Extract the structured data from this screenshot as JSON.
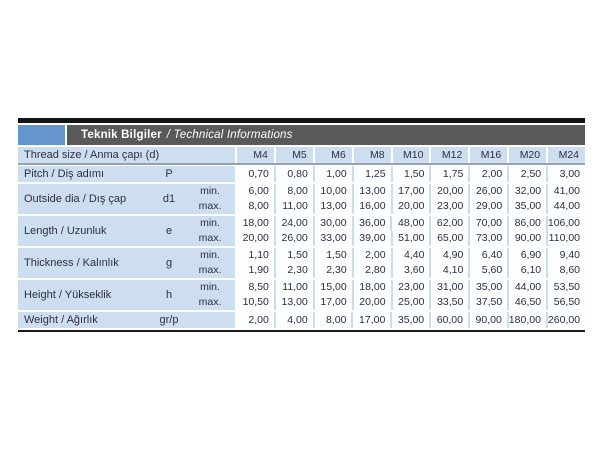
{
  "title_bar": {
    "title_bold": "Teknik Bilgiler",
    "title_italic": "/ Technical Informations"
  },
  "colors": {
    "accent_blue": "#6495cd",
    "title_bar_gray": "#58595b",
    "cell_light_blue": "#cddef0",
    "data_cell_white": "#fbfdfe",
    "divider_gray": "#9ba1a8",
    "rule_black": "#141414",
    "text_dark": "#2b3040"
  },
  "table": {
    "size_header": {
      "label": "Thread size / Anma çapı (d)",
      "sizes": [
        "M4",
        "M5",
        "M6",
        "M8",
        "M10",
        "M12",
        "M16",
        "M20",
        "M24"
      ]
    },
    "groups": [
      {
        "label": "Pitch / Diş adımı",
        "symbol": "P",
        "rows": [
          {
            "sub": "",
            "values": [
              "0,70",
              "0,80",
              "1,00",
              "1,25",
              "1,50",
              "1,75",
              "2,00",
              "2,50",
              "3,00"
            ]
          }
        ]
      },
      {
        "label": "Outside dia / Dış çap",
        "symbol": "d1",
        "rows": [
          {
            "sub": "min.",
            "values": [
              "6,00",
              "8,00",
              "10,00",
              "13,00",
              "17,00",
              "20,00",
              "26,00",
              "32,00",
              "41,00"
            ]
          },
          {
            "sub": "max.",
            "values": [
              "8,00",
              "11,00",
              "13,00",
              "16,00",
              "20,00",
              "23,00",
              "29,00",
              "35,00",
              "44,00"
            ]
          }
        ]
      },
      {
        "label": "Length / Uzunluk",
        "symbol": "e",
        "rows": [
          {
            "sub": "min.",
            "values": [
              "18,00",
              "24,00",
              "30,00",
              "36,00",
              "48,00",
              "62,00",
              "70,00",
              "86,00",
              "106,00"
            ]
          },
          {
            "sub": "max.",
            "values": [
              "20,00",
              "26,00",
              "33,00",
              "39,00",
              "51,00",
              "65,00",
              "73,00",
              "90,00",
              "110,00"
            ]
          }
        ]
      },
      {
        "label": "Thickness / Kalınlık",
        "symbol": "g",
        "rows": [
          {
            "sub": "min.",
            "values": [
              "1,10",
              "1,50",
              "1,50",
              "2,00",
              "4,40",
              "4,90",
              "6,40",
              "6,90",
              "9,40"
            ]
          },
          {
            "sub": "max.",
            "values": [
              "1,90",
              "2,30",
              "2,30",
              "2,80",
              "3,60",
              "4,10",
              "5,60",
              "6,10",
              "8,60"
            ]
          }
        ]
      },
      {
        "label": "Height / Yükseklik",
        "symbol": "h",
        "rows": [
          {
            "sub": "min.",
            "values": [
              "8,50",
              "11,00",
              "15,00",
              "18,00",
              "23,00",
              "31,00",
              "35,00",
              "44,00",
              "53,50"
            ]
          },
          {
            "sub": "max.",
            "values": [
              "10,50",
              "13,00",
              "17,00",
              "20,00",
              "25,00",
              "33,50",
              "37,50",
              "46,50",
              "56,50"
            ]
          }
        ]
      },
      {
        "label": "Weight / Ağırlık",
        "symbol": "gr/p",
        "rows": [
          {
            "sub": "",
            "values": [
              "2,00",
              "4,00",
              "8,00",
              "17,00",
              "35,00",
              "60,00",
              "90,00",
              "180,00",
              "260,00"
            ]
          }
        ]
      }
    ]
  }
}
